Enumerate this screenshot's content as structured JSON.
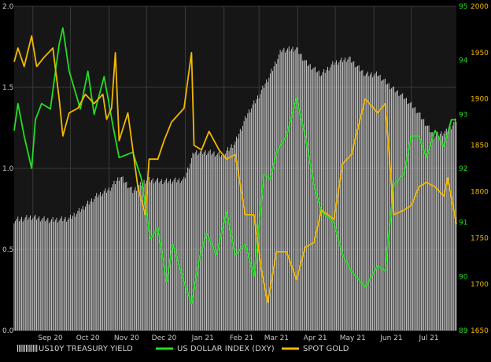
{
  "chart_data": {
    "type": "line",
    "title": "",
    "xlabel": "",
    "x_ticks": [
      "Sep 20",
      "Oct 20",
      "Nov 20",
      "Dec 20",
      "Jan 21",
      "Feb 21",
      "Mar 21",
      "Apr 21",
      "May 21",
      "Jun 21",
      "Jul 21"
    ],
    "x_range": [
      "2020-08-17",
      "2021-08-06"
    ],
    "grid": true,
    "legend_position": "bottom",
    "axes": {
      "left": {
        "ticks": [
          "0.0",
          "0.5",
          "1.0",
          "1.5",
          "2.0"
        ],
        "range": [
          0,
          2.0
        ],
        "color": "#c8c8c8"
      },
      "right_inner": {
        "ticks": [
          "89",
          "90",
          "91",
          "92",
          "93",
          "94",
          "95"
        ],
        "range": [
          89,
          95
        ],
        "color": "#22dd22"
      },
      "right_outer": {
        "ticks": [
          "1650",
          "1700",
          "1750",
          "1800",
          "1850",
          "1900",
          "1950",
          "2000"
        ],
        "range": [
          1650,
          2000
        ],
        "color": "#f0b800"
      }
    },
    "series": [
      {
        "name": "US10Y TREASURY YIELD",
        "type": "bar",
        "axis": "left",
        "color": "#d8d8d8",
        "points": [
          [
            "2020-08-17",
            0.68
          ],
          [
            "2020-08-31",
            0.7
          ],
          [
            "2020-09-15",
            0.68
          ],
          [
            "2020-09-30",
            0.69
          ],
          [
            "2020-10-10",
            0.75
          ],
          [
            "2020-10-22",
            0.83
          ],
          [
            "2020-11-01",
            0.87
          ],
          [
            "2020-11-10",
            0.95
          ],
          [
            "2020-11-20",
            0.86
          ],
          [
            "2020-12-01",
            0.93
          ],
          [
            "2020-12-15",
            0.92
          ],
          [
            "2020-12-31",
            0.93
          ],
          [
            "2021-01-08",
            1.1
          ],
          [
            "2021-01-20",
            1.1
          ],
          [
            "2021-01-31",
            1.08
          ],
          [
            "2021-02-10",
            1.16
          ],
          [
            "2021-02-20",
            1.34
          ],
          [
            "2021-03-01",
            1.45
          ],
          [
            "2021-03-10",
            1.58
          ],
          [
            "2021-03-19",
            1.73
          ],
          [
            "2021-03-31",
            1.74
          ],
          [
            "2021-04-08",
            1.65
          ],
          [
            "2021-04-20",
            1.58
          ],
          [
            "2021-04-30",
            1.65
          ],
          [
            "2021-05-12",
            1.68
          ],
          [
            "2021-05-25",
            1.58
          ],
          [
            "2021-06-04",
            1.58
          ],
          [
            "2021-06-15",
            1.5
          ],
          [
            "2021-06-25",
            1.44
          ],
          [
            "2021-07-06",
            1.35
          ],
          [
            "2021-07-19",
            1.2
          ],
          [
            "2021-07-30",
            1.23
          ],
          [
            "2021-08-06",
            1.3
          ]
        ]
      },
      {
        "name": "US DOLLAR INDEX (DXY)",
        "type": "line",
        "axis": "right_inner",
        "color": "#22dd22",
        "points": [
          [
            "2020-08-17",
            92.7
          ],
          [
            "2020-08-20",
            93.2
          ],
          [
            "2020-08-25",
            92.6
          ],
          [
            "2020-08-31",
            92.0
          ],
          [
            "2020-09-03",
            92.9
          ],
          [
            "2020-09-08",
            93.2
          ],
          [
            "2020-09-15",
            93.1
          ],
          [
            "2020-09-22",
            94.3
          ],
          [
            "2020-09-25",
            94.6
          ],
          [
            "2020-09-30",
            93.8
          ],
          [
            "2020-10-09",
            93.1
          ],
          [
            "2020-10-15",
            93.8
          ],
          [
            "2020-10-20",
            93.0
          ],
          [
            "2020-10-28",
            93.7
          ],
          [
            "2020-11-04",
            92.8
          ],
          [
            "2020-11-09",
            92.2
          ],
          [
            "2020-11-20",
            92.3
          ],
          [
            "2020-11-27",
            91.8
          ],
          [
            "2020-12-04",
            90.7
          ],
          [
            "2020-12-10",
            90.9
          ],
          [
            "2020-12-17",
            89.9
          ],
          [
            "2020-12-22",
            90.6
          ],
          [
            "2020-12-31",
            89.9
          ],
          [
            "2021-01-06",
            89.5
          ],
          [
            "2021-01-12",
            90.3
          ],
          [
            "2021-01-18",
            90.8
          ],
          [
            "2021-01-26",
            90.4
          ],
          [
            "2021-02-03",
            91.2
          ],
          [
            "2021-02-10",
            90.4
          ],
          [
            "2021-02-18",
            90.6
          ],
          [
            "2021-02-25",
            90.0
          ],
          [
            "2021-03-05",
            91.9
          ],
          [
            "2021-03-10",
            91.8
          ],
          [
            "2021-03-15",
            92.3
          ],
          [
            "2021-03-23",
            92.6
          ],
          [
            "2021-03-31",
            93.3
          ],
          [
            "2021-04-07",
            92.6
          ],
          [
            "2021-04-14",
            91.7
          ],
          [
            "2021-04-20",
            91.2
          ],
          [
            "2021-04-30",
            91.0
          ],
          [
            "2021-05-07",
            90.4
          ],
          [
            "2021-05-14",
            90.1
          ],
          [
            "2021-05-25",
            89.8
          ],
          [
            "2021-06-04",
            90.2
          ],
          [
            "2021-06-10",
            90.1
          ],
          [
            "2021-06-17",
            91.7
          ],
          [
            "2021-06-25",
            91.9
          ],
          [
            "2021-07-01",
            92.6
          ],
          [
            "2021-07-07",
            92.6
          ],
          [
            "2021-07-13",
            92.2
          ],
          [
            "2021-07-20",
            92.7
          ],
          [
            "2021-07-27",
            92.4
          ],
          [
            "2021-08-02",
            92.9
          ],
          [
            "2021-08-06",
            92.9
          ]
        ]
      },
      {
        "name": "SPOT GOLD",
        "type": "line",
        "axis": "right_outer",
        "color": "#f0b800",
        "points": [
          [
            "2020-08-17",
            1940
          ],
          [
            "2020-08-20",
            1955
          ],
          [
            "2020-08-25",
            1935
          ],
          [
            "2020-08-31",
            1968
          ],
          [
            "2020-09-04",
            1935
          ],
          [
            "2020-09-10",
            1945
          ],
          [
            "2020-09-17",
            1955
          ],
          [
            "2020-09-22",
            1900
          ],
          [
            "2020-09-25",
            1860
          ],
          [
            "2020-09-30",
            1885
          ],
          [
            "2020-10-07",
            1890
          ],
          [
            "2020-10-13",
            1905
          ],
          [
            "2020-10-20",
            1895
          ],
          [
            "2020-10-27",
            1905
          ],
          [
            "2020-10-30",
            1878
          ],
          [
            "2020-11-03",
            1890
          ],
          [
            "2020-11-06",
            1950
          ],
          [
            "2020-11-09",
            1855
          ],
          [
            "2020-11-16",
            1885
          ],
          [
            "2020-11-24",
            1805
          ],
          [
            "2020-11-30",
            1775
          ],
          [
            "2020-12-03",
            1835
          ],
          [
            "2020-12-10",
            1835
          ],
          [
            "2020-12-15",
            1855
          ],
          [
            "2020-12-21",
            1875
          ],
          [
            "2020-12-31",
            1890
          ],
          [
            "2021-01-06",
            1950
          ],
          [
            "2021-01-08",
            1850
          ],
          [
            "2021-01-14",
            1845
          ],
          [
            "2021-01-20",
            1865
          ],
          [
            "2021-01-28",
            1845
          ],
          [
            "2021-02-03",
            1835
          ],
          [
            "2021-02-10",
            1840
          ],
          [
            "2021-02-18",
            1775
          ],
          [
            "2021-02-25",
            1775
          ],
          [
            "2021-03-03",
            1715
          ],
          [
            "2021-03-08",
            1680
          ],
          [
            "2021-03-15",
            1735
          ],
          [
            "2021-03-23",
            1735
          ],
          [
            "2021-03-31",
            1705
          ],
          [
            "2021-04-07",
            1740
          ],
          [
            "2021-04-14",
            1745
          ],
          [
            "2021-04-20",
            1780
          ],
          [
            "2021-04-30",
            1770
          ],
          [
            "2021-05-07",
            1830
          ],
          [
            "2021-05-14",
            1840
          ],
          [
            "2021-05-25",
            1900
          ],
          [
            "2021-06-04",
            1885
          ],
          [
            "2021-06-10",
            1895
          ],
          [
            "2021-06-17",
            1775
          ],
          [
            "2021-06-25",
            1780
          ],
          [
            "2021-07-01",
            1785
          ],
          [
            "2021-07-07",
            1805
          ],
          [
            "2021-07-13",
            1810
          ],
          [
            "2021-07-20",
            1805
          ],
          [
            "2021-07-27",
            1795
          ],
          [
            "2021-07-30",
            1815
          ],
          [
            "2021-08-06",
            1765
          ]
        ]
      }
    ]
  },
  "legend": [
    {
      "label": "US10Y TREASURY YIELD",
      "swatch": "bars",
      "color": "#d8d8d8"
    },
    {
      "label": "US DOLLAR INDEX (DXY)",
      "swatch": "line",
      "color": "#22dd22"
    },
    {
      "label": "SPOT GOLD",
      "swatch": "line",
      "color": "#f0b800"
    }
  ],
  "colors": {
    "background": "#000000",
    "plot_background": "#161616",
    "gridline": "#3a3a3a",
    "tick_text": "#c8c8c8",
    "legend_text": "#d0d0d0"
  }
}
